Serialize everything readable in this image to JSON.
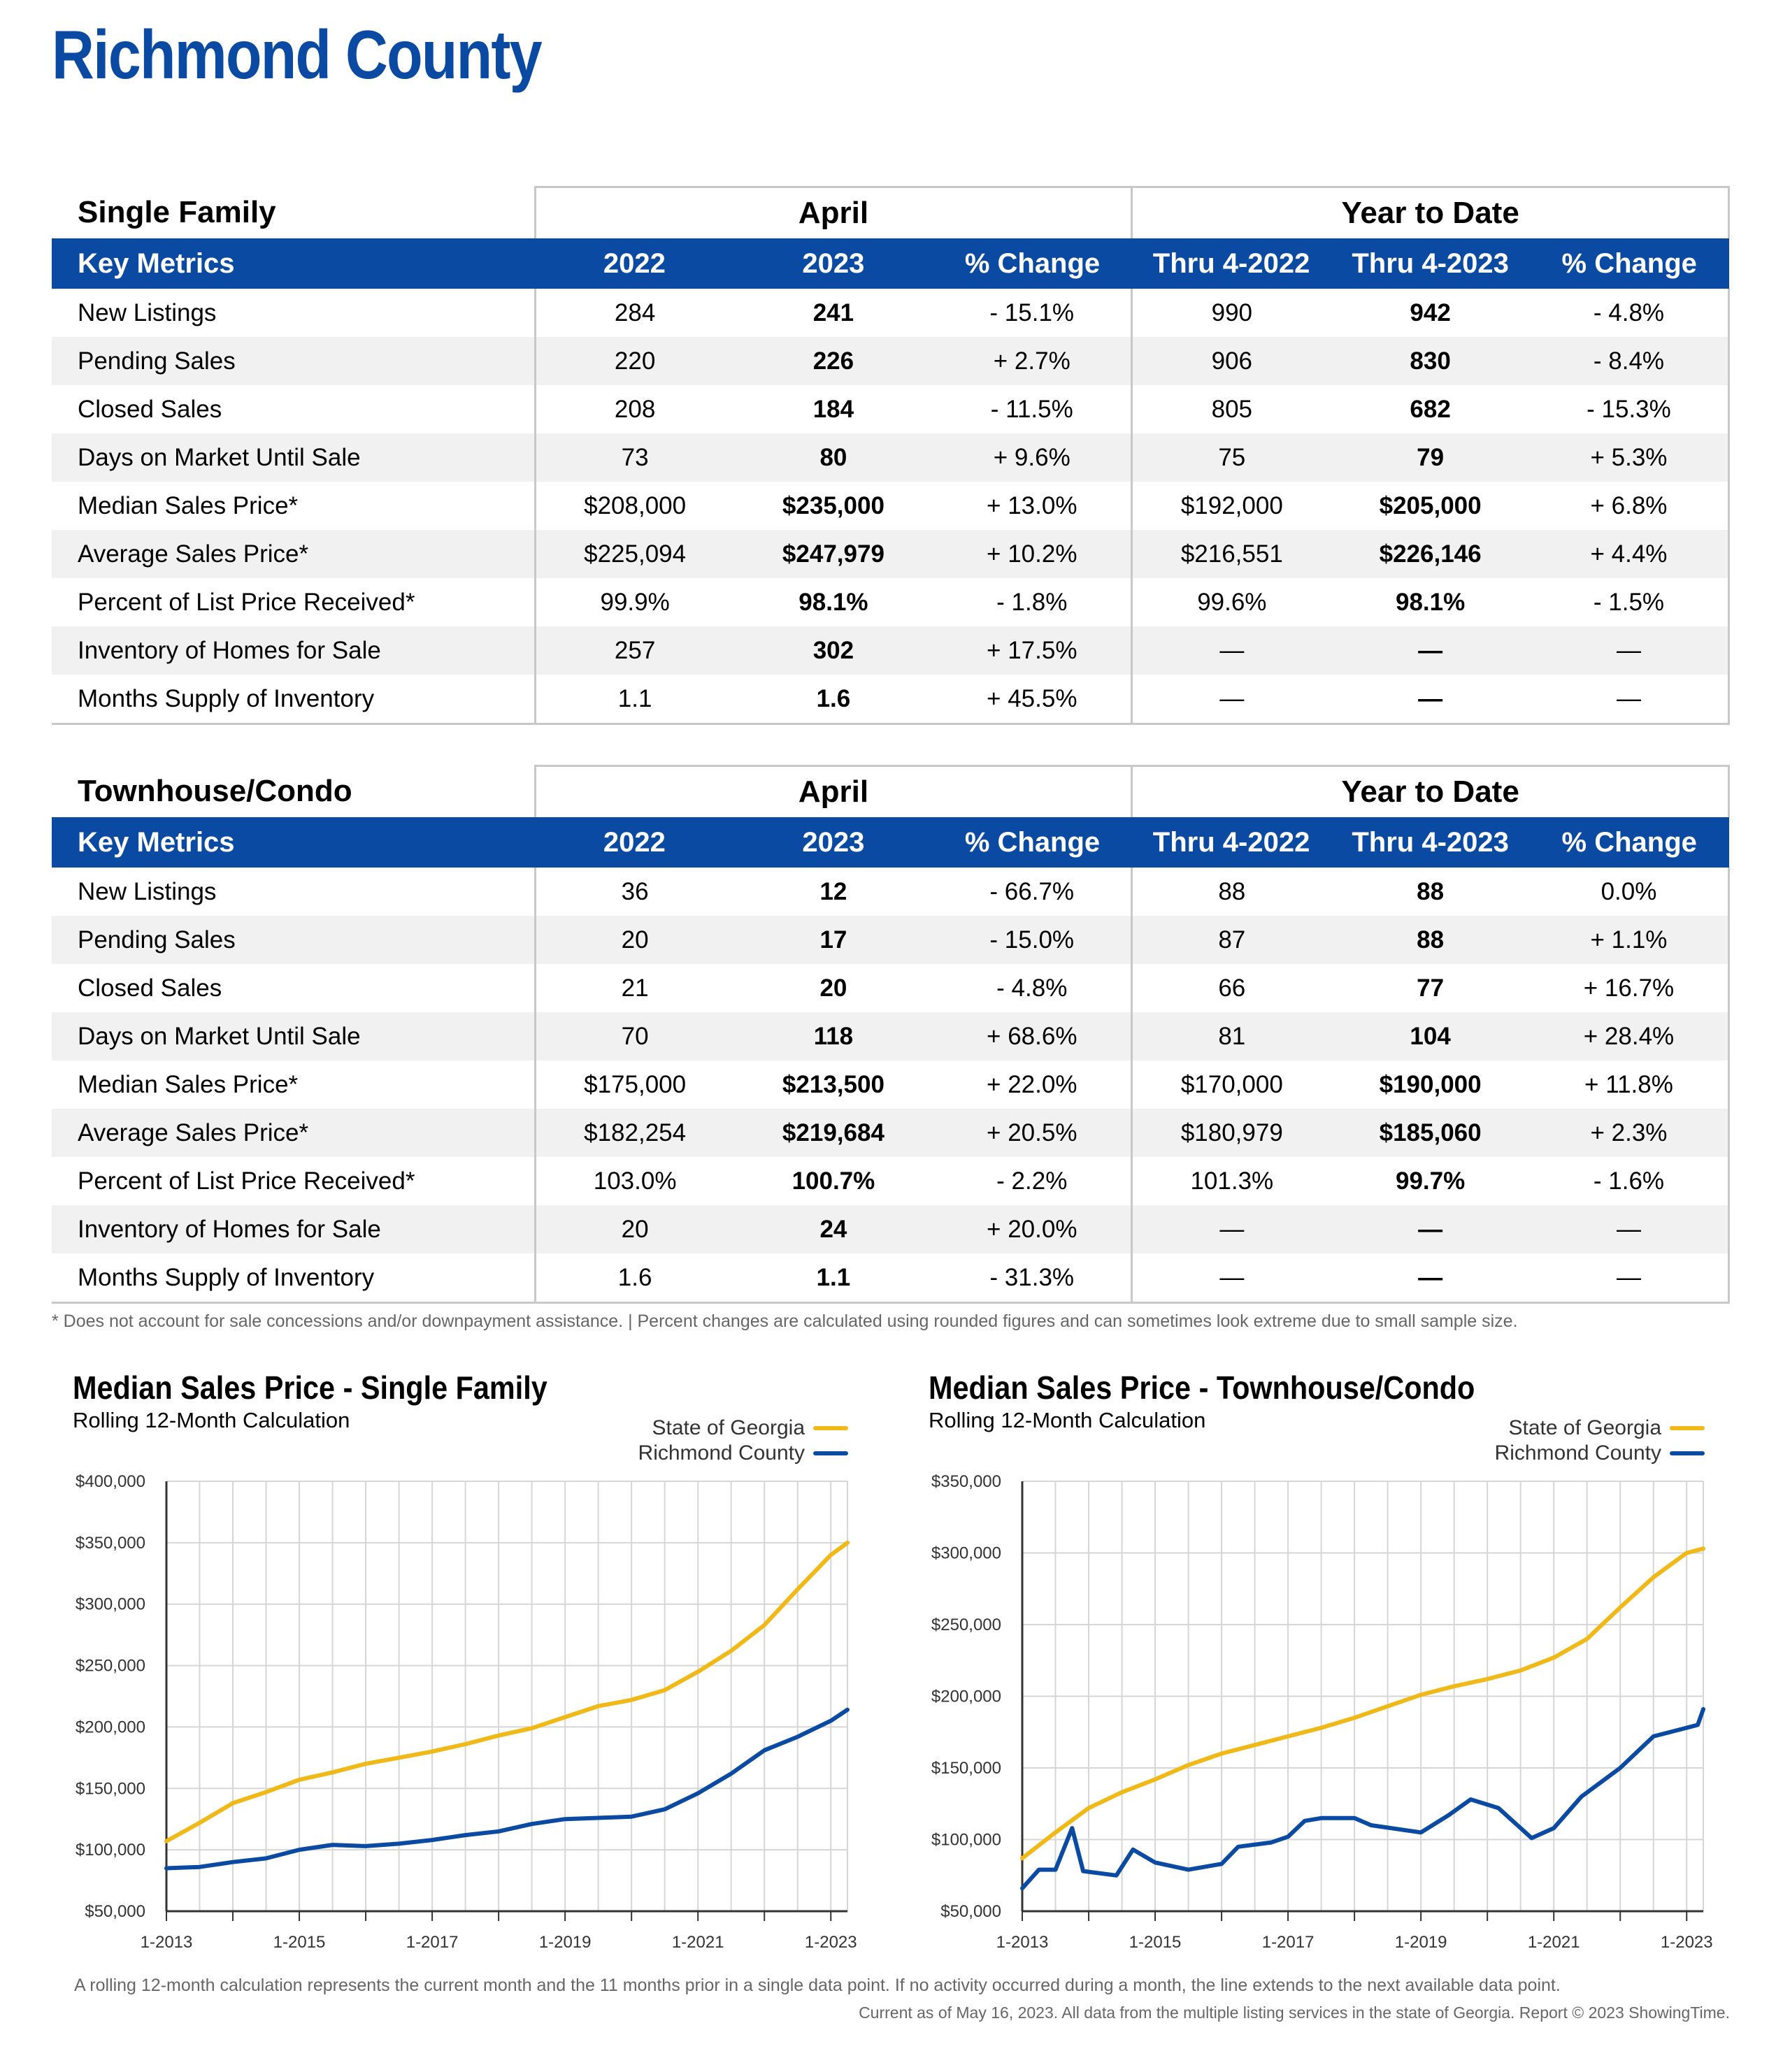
{
  "page": {
    "title": "Richmond County"
  },
  "tables": [
    {
      "category": "Single Family",
      "group1": "April",
      "group2": "Year to Date",
      "columns": [
        "Key Metrics",
        "2022",
        "2023",
        "% Change",
        "Thru 4-2022",
        "Thru 4-2023",
        "% Change"
      ],
      "rows": [
        [
          "New Listings",
          "284",
          "241",
          "- 15.1%",
          "990",
          "942",
          "- 4.8%"
        ],
        [
          "Pending Sales",
          "220",
          "226",
          "+ 2.7%",
          "906",
          "830",
          "- 8.4%"
        ],
        [
          "Closed Sales",
          "208",
          "184",
          "- 11.5%",
          "805",
          "682",
          "- 15.3%"
        ],
        [
          "Days on Market Until Sale",
          "73",
          "80",
          "+ 9.6%",
          "75",
          "79",
          "+ 5.3%"
        ],
        [
          "Median Sales Price*",
          "$208,000",
          "$235,000",
          "+ 13.0%",
          "$192,000",
          "$205,000",
          "+ 6.8%"
        ],
        [
          "Average Sales Price*",
          "$225,094",
          "$247,979",
          "+ 10.2%",
          "$216,551",
          "$226,146",
          "+ 4.4%"
        ],
        [
          "Percent of List Price Received*",
          "99.9%",
          "98.1%",
          "- 1.8%",
          "99.6%",
          "98.1%",
          "- 1.5%"
        ],
        [
          "Inventory of Homes for Sale",
          "257",
          "302",
          "+ 17.5%",
          "—",
          "—",
          "—"
        ],
        [
          "Months Supply of Inventory",
          "1.1",
          "1.6",
          "+ 45.5%",
          "—",
          "—",
          "—"
        ]
      ]
    },
    {
      "category": "Townhouse/Condo",
      "group1": "April",
      "group2": "Year to Date",
      "columns": [
        "Key Metrics",
        "2022",
        "2023",
        "% Change",
        "Thru 4-2022",
        "Thru 4-2023",
        "% Change"
      ],
      "rows": [
        [
          "New Listings",
          "36",
          "12",
          "- 66.7%",
          "88",
          "88",
          "0.0%"
        ],
        [
          "Pending Sales",
          "20",
          "17",
          "- 15.0%",
          "87",
          "88",
          "+ 1.1%"
        ],
        [
          "Closed Sales",
          "21",
          "20",
          "- 4.8%",
          "66",
          "77",
          "+ 16.7%"
        ],
        [
          "Days on Market Until Sale",
          "70",
          "118",
          "+ 68.6%",
          "81",
          "104",
          "+ 28.4%"
        ],
        [
          "Median Sales Price*",
          "$175,000",
          "$213,500",
          "+ 22.0%",
          "$170,000",
          "$190,000",
          "+ 11.8%"
        ],
        [
          "Average Sales Price*",
          "$182,254",
          "$219,684",
          "+ 20.5%",
          "$180,979",
          "$185,060",
          "+ 2.3%"
        ],
        [
          "Percent of List Price Received*",
          "103.0%",
          "100.7%",
          "- 2.2%",
          "101.3%",
          "99.7%",
          "- 1.6%"
        ],
        [
          "Inventory of Homes for Sale",
          "20",
          "24",
          "+ 20.0%",
          "—",
          "—",
          "—"
        ],
        [
          "Months Supply of Inventory",
          "1.6",
          "1.1",
          "- 31.3%",
          "—",
          "—",
          "—"
        ]
      ]
    }
  ],
  "footnote": "* Does not account for sale concessions and/or downpayment assistance. | Percent changes are calculated using rounded figures and can sometimes look extreme due to small sample size.",
  "colors": {
    "brand": "#0b4aa2",
    "state": "#f0b917",
    "county": "#0b4aa2",
    "grid": "#d6d6d6",
    "row_alt": "#f1f1f1"
  },
  "chart_data": [
    {
      "type": "line",
      "title": "Median Sales Price - Single Family",
      "subtitle": "Rolling 12-Month Calculation",
      "x_ticks": [
        "1-2013",
        "1-2015",
        "1-2017",
        "1-2019",
        "1-2021",
        "1-2023"
      ],
      "x_range": [
        "1-2013",
        "4-2023"
      ],
      "y_ticks": [
        "$50,000",
        "$100,000",
        "$150,000",
        "$200,000",
        "$250,000",
        "$300,000",
        "$350,000",
        "$400,000"
      ],
      "ylim": [
        50000,
        400000
      ],
      "grid": true,
      "legend_position": "top-right",
      "series": [
        {
          "name": "State of Georgia",
          "points": [
            [
              "1-2013",
              107000
            ],
            [
              "7-2013",
              122000
            ],
            [
              "1-2014",
              138000
            ],
            [
              "7-2014",
              147000
            ],
            [
              "1-2015",
              157000
            ],
            [
              "7-2015",
              163000
            ],
            [
              "1-2016",
              170000
            ],
            [
              "7-2016",
              175000
            ],
            [
              "1-2017",
              180000
            ],
            [
              "7-2017",
              186000
            ],
            [
              "1-2018",
              193000
            ],
            [
              "7-2018",
              199000
            ],
            [
              "1-2019",
              208000
            ],
            [
              "7-2019",
              217000
            ],
            [
              "1-2020",
              222000
            ],
            [
              "7-2020",
              230000
            ],
            [
              "1-2021",
              245000
            ],
            [
              "7-2021",
              262000
            ],
            [
              "1-2022",
              283000
            ],
            [
              "7-2022",
              312000
            ],
            [
              "1-2023",
              340000
            ],
            [
              "4-2023",
              350000
            ]
          ]
        },
        {
          "name": "Richmond County",
          "points": [
            [
              "1-2013",
              85000
            ],
            [
              "7-2013",
              86000
            ],
            [
              "1-2014",
              90000
            ],
            [
              "7-2014",
              93000
            ],
            [
              "1-2015",
              100000
            ],
            [
              "7-2015",
              104000
            ],
            [
              "1-2016",
              103000
            ],
            [
              "7-2016",
              105000
            ],
            [
              "1-2017",
              108000
            ],
            [
              "7-2017",
              112000
            ],
            [
              "1-2018",
              115000
            ],
            [
              "7-2018",
              121000
            ],
            [
              "1-2019",
              125000
            ],
            [
              "7-2019",
              126000
            ],
            [
              "1-2020",
              127000
            ],
            [
              "7-2020",
              133000
            ],
            [
              "1-2021",
              146000
            ],
            [
              "7-2021",
              162000
            ],
            [
              "1-2022",
              181000
            ],
            [
              "7-2022",
              192000
            ],
            [
              "1-2023",
              205000
            ],
            [
              "4-2023",
              214000
            ]
          ]
        }
      ]
    },
    {
      "type": "line",
      "title": "Median Sales Price - Townhouse/Condo",
      "subtitle": "Rolling 12-Month Calculation",
      "x_ticks": [
        "1-2013",
        "1-2015",
        "1-2017",
        "1-2019",
        "1-2021",
        "1-2023"
      ],
      "x_range": [
        "1-2013",
        "4-2023"
      ],
      "y_ticks": [
        "$50,000",
        "$100,000",
        "$150,000",
        "$200,000",
        "$250,000",
        "$300,000",
        "$350,000"
      ],
      "ylim": [
        50000,
        350000
      ],
      "grid": true,
      "legend_position": "top-right",
      "series": [
        {
          "name": "State of Georgia",
          "points": [
            [
              "1-2013",
              87000
            ],
            [
              "7-2013",
              105000
            ],
            [
              "1-2014",
              122000
            ],
            [
              "7-2014",
              133000
            ],
            [
              "1-2015",
              142000
            ],
            [
              "7-2015",
              152000
            ],
            [
              "1-2016",
              160000
            ],
            [
              "7-2016",
              166000
            ],
            [
              "1-2017",
              172000
            ],
            [
              "7-2017",
              178000
            ],
            [
              "1-2018",
              185000
            ],
            [
              "7-2018",
              193000
            ],
            [
              "1-2019",
              201000
            ],
            [
              "7-2019",
              207000
            ],
            [
              "1-2020",
              212000
            ],
            [
              "7-2020",
              218000
            ],
            [
              "1-2021",
              227000
            ],
            [
              "7-2021",
              240000
            ],
            [
              "1-2022",
              262000
            ],
            [
              "7-2022",
              283000
            ],
            [
              "1-2023",
              300000
            ],
            [
              "4-2023",
              303000
            ]
          ]
        },
        {
          "name": "Richmond County",
          "points": [
            [
              "1-2013",
              66000
            ],
            [
              "4-2013",
              79000
            ],
            [
              "7-2013",
              79000
            ],
            [
              "10-2013",
              108000
            ],
            [
              "12-2013",
              78000
            ],
            [
              "6-2014",
              75000
            ],
            [
              "9-2014",
              93000
            ],
            [
              "1-2015",
              84000
            ],
            [
              "7-2015",
              79000
            ],
            [
              "1-2016",
              83000
            ],
            [
              "4-2016",
              95000
            ],
            [
              "10-2016",
              98000
            ],
            [
              "1-2017",
              102000
            ],
            [
              "4-2017",
              113000
            ],
            [
              "7-2017",
              115000
            ],
            [
              "1-2018",
              115000
            ],
            [
              "4-2018",
              110000
            ],
            [
              "1-2019",
              105000
            ],
            [
              "6-2019",
              117000
            ],
            [
              "10-2019",
              128000
            ],
            [
              "3-2020",
              122000
            ],
            [
              "9-2020",
              101000
            ],
            [
              "1-2021",
              108000
            ],
            [
              "6-2021",
              130000
            ],
            [
              "1-2022",
              150000
            ],
            [
              "7-2022",
              172000
            ],
            [
              "1-2023",
              178000
            ],
            [
              "3-2023",
              180000
            ],
            [
              "4-2023",
              191000
            ]
          ]
        }
      ]
    }
  ],
  "bottom_note": "A rolling 12-month calculation represents the current month and the 11 months prior in a single data point. If no activity occurred during a month, the line extends to the next available data point.",
  "credit": "Current as of May 16, 2023. All data from the multiple listing services in the state of Georgia. Report © 2023 ShowingTime."
}
